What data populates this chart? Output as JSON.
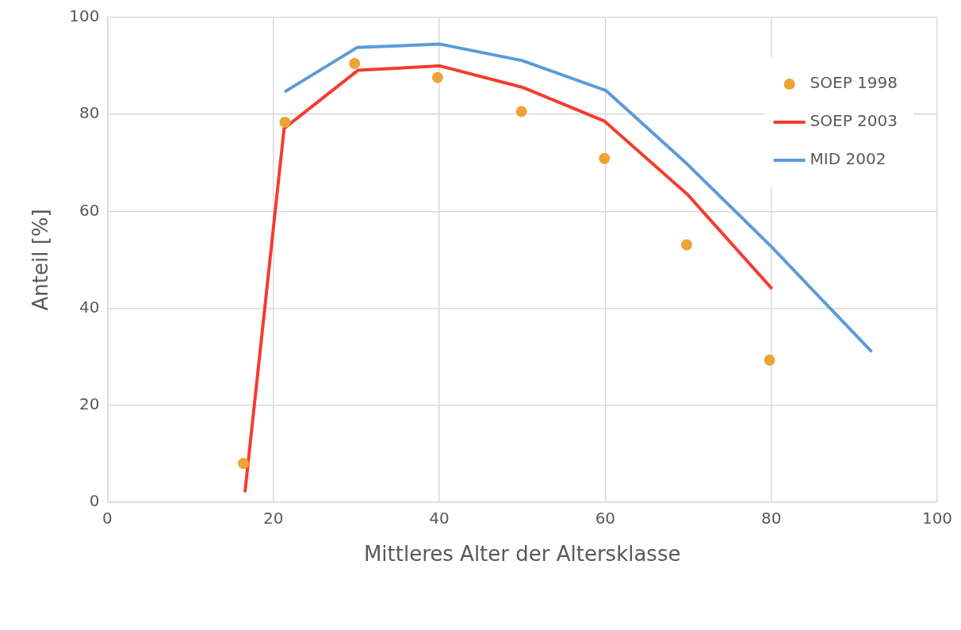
{
  "chart_data": {
    "type": "line",
    "xlabel": "Mittleres Alter der Altersklasse",
    "ylabel": "Anteil [%]",
    "xlim": [
      0,
      100
    ],
    "xticks": [
      0,
      20,
      40,
      60,
      80,
      100
    ],
    "ylim": [
      0,
      100
    ],
    "yticks": [
      0,
      20,
      40,
      60,
      80,
      100
    ],
    "grid": true,
    "legend": "top right",
    "series": [
      {
        "name": "SOEP 1998",
        "type": "scatter",
        "marker": "circle",
        "color": "#eda336",
        "x": [
          16.4,
          21.4,
          29.8,
          39.8,
          49.9,
          59.9,
          69.8,
          79.8
        ],
        "values": [
          8.0,
          78.4,
          90.5,
          87.6,
          80.6,
          70.9,
          53.1,
          29.3
        ]
      },
      {
        "name": "SOEP 2003",
        "marker": "none",
        "color": "#f43c2e",
        "x": [
          16.6,
          21.3,
          30.2,
          40.1,
          50.0,
          59.9,
          69.9,
          80.0
        ],
        "values": [
          2.3,
          77.1,
          89.1,
          90.0,
          85.6,
          78.6,
          63.5,
          44.2
        ]
      },
      {
        "name": "MID 2002",
        "marker": "none",
        "color": "#5b9bd8",
        "x": [
          21.5,
          30.1,
          40.1,
          50.0,
          60.1,
          69.9,
          79.9,
          92.0
        ],
        "values": [
          84.8,
          93.8,
          94.5,
          91.1,
          84.9,
          69.7,
          52.9,
          31.2
        ]
      }
    ]
  }
}
